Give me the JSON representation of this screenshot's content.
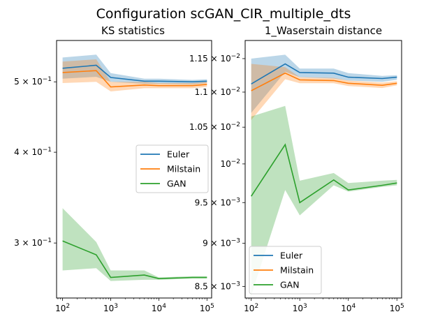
{
  "figure": {
    "title": "Configuration scGAN_CIR_multiple_dts"
  },
  "chart_data": [
    {
      "type": "line",
      "title": "KS statistics",
      "xscale": "log",
      "yscale": "log",
      "xlim": [
        75,
        125000
      ],
      "ylim": [
        0.252,
        0.57
      ],
      "x": [
        100,
        500,
        1000,
        5000,
        10000,
        50000,
        100000
      ],
      "x_ticks": [
        {
          "value": 100,
          "base": "10",
          "exp": "2"
        },
        {
          "value": 1000,
          "base": "10",
          "exp": "3"
        },
        {
          "value": 10000,
          "base": "10",
          "exp": "4"
        },
        {
          "value": 100000,
          "base": "10",
          "exp": "5"
        }
      ],
      "y_ticks": [
        {
          "value": 0.5,
          "mant": "5",
          "exp": "−1"
        },
        {
          "value": 0.4,
          "mant": "4",
          "exp": "−1"
        },
        {
          "value": 0.3,
          "mant": "3",
          "exp": "−1"
        }
      ],
      "legend": "center-right",
      "series": [
        {
          "name": "Euler",
          "color": "#1f77b4",
          "values": [
            0.522,
            0.527,
            0.507,
            0.501,
            0.501,
            0.5,
            0.501
          ],
          "lower": [
            0.505,
            0.508,
            0.5,
            0.497,
            0.497,
            0.496,
            0.498
          ],
          "upper": [
            0.54,
            0.545,
            0.514,
            0.505,
            0.505,
            0.503,
            0.504
          ]
        },
        {
          "name": "Milstain",
          "color": "#ff7f0e",
          "values": [
            0.515,
            0.518,
            0.492,
            0.495,
            0.494,
            0.494,
            0.496
          ],
          "lower": [
            0.498,
            0.5,
            0.485,
            0.49,
            0.49,
            0.49,
            0.492
          ],
          "upper": [
            0.533,
            0.537,
            0.5,
            0.5,
            0.498,
            0.498,
            0.5
          ]
        },
        {
          "name": "GAN",
          "color": "#2ca02c",
          "values": [
            0.302,
            0.289,
            0.269,
            0.271,
            0.268,
            0.269,
            0.269
          ],
          "lower": [
            0.275,
            0.277,
            0.266,
            0.267,
            0.267,
            0.268,
            0.268
          ],
          "upper": [
            0.335,
            0.301,
            0.275,
            0.275,
            0.269,
            0.27,
            0.27
          ]
        }
      ]
    },
    {
      "type": "line",
      "title": "1_Waserstain distance",
      "xscale": "log",
      "yscale": "log",
      "xlim": [
        75,
        125000
      ],
      "ylim": [
        0.00837,
        0.01178
      ],
      "x": [
        100,
        500,
        1000,
        5000,
        10000,
        50000,
        100000
      ],
      "x_ticks": [
        {
          "value": 100,
          "base": "10",
          "exp": "2"
        },
        {
          "value": 1000,
          "base": "10",
          "exp": "3"
        },
        {
          "value": 10000,
          "base": "10",
          "exp": "4"
        },
        {
          "value": 100000,
          "base": "10",
          "exp": "5"
        }
      ],
      "y_ticks": [
        {
          "value": 0.0115,
          "mant": "1.15",
          "exp": "−2"
        },
        {
          "value": 0.011,
          "mant": "1.1",
          "exp": "−2"
        },
        {
          "value": 0.0105,
          "mant": "1.05",
          "exp": "−2"
        },
        {
          "value": 0.01,
          "mant": "",
          "exp": "−2"
        },
        {
          "value": 0.0095,
          "mant": "9.5",
          "exp": "−3"
        },
        {
          "value": 0.009,
          "mant": "9",
          "exp": "−3"
        },
        {
          "value": 0.0085,
          "mant": "8.5",
          "exp": "−3"
        }
      ],
      "legend": "lower-left",
      "series": [
        {
          "name": "Euler",
          "color": "#1f77b4",
          "values": [
            0.01112,
            0.01142,
            0.01129,
            0.01128,
            0.01122,
            0.0112,
            0.01122
          ],
          "lower": [
            0.0107,
            0.0113,
            0.01122,
            0.0112,
            0.01117,
            0.01115,
            0.01118
          ],
          "upper": [
            0.0115,
            0.01156,
            0.01135,
            0.01135,
            0.01128,
            0.01124,
            0.01125
          ]
        },
        {
          "name": "Milstain",
          "color": "#ff7f0e",
          "values": [
            0.01102,
            0.01128,
            0.01118,
            0.01117,
            0.01113,
            0.0111,
            0.01113
          ],
          "lower": [
            0.0106,
            0.01119,
            0.01113,
            0.01113,
            0.01109,
            0.01106,
            0.0111
          ],
          "upper": [
            0.01142,
            0.01137,
            0.01122,
            0.01121,
            0.01117,
            0.01114,
            0.01116
          ]
        },
        {
          "name": "GAN",
          "color": "#2ca02c",
          "values": [
            0.00958,
            0.01026,
            0.0095,
            0.00979,
            0.00966,
            0.00972,
            0.00975
          ],
          "lower": [
            0.0084,
            0.00966,
            0.00934,
            0.00972,
            0.00964,
            0.0097,
            0.00972
          ],
          "upper": [
            0.01065,
            0.0108,
            0.00978,
            0.00988,
            0.00975,
            0.00978,
            0.00979
          ]
        }
      ]
    }
  ]
}
